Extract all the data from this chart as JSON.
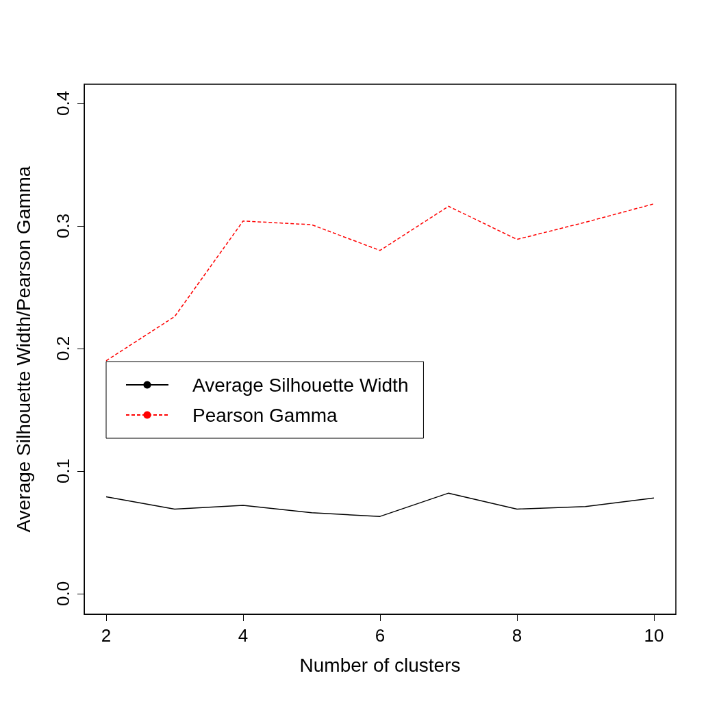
{
  "chart_data": {
    "type": "line",
    "xlabel": "Number of clusters",
    "ylabel": "Average Silhouette Width/Pearson Gamma",
    "x": [
      2,
      3,
      4,
      5,
      6,
      7,
      8,
      9,
      10
    ],
    "series": [
      {
        "name": "Average Silhouette Width",
        "color": "#000000",
        "line_style": "solid",
        "values": [
          0.079,
          0.069,
          0.072,
          0.066,
          0.063,
          0.082,
          0.069,
          0.071,
          0.078
        ]
      },
      {
        "name": "Pearson Gamma",
        "color": "#ff0000",
        "line_style": "dashed",
        "values": [
          0.19,
          0.226,
          0.304,
          0.301,
          0.28,
          0.316,
          0.289,
          0.303,
          0.318
        ]
      }
    ],
    "xlim": [
      1.68,
      10.32
    ],
    "ylim": [
      -0.0168,
      0.4156
    ],
    "xticks": [
      2,
      4,
      6,
      8,
      10
    ],
    "yticks": [
      {
        "value": 0,
        "label": "0.0"
      },
      0.1,
      0.2,
      0.3,
      0.4
    ],
    "grid": false,
    "legend": "center left",
    "marker": "none"
  }
}
